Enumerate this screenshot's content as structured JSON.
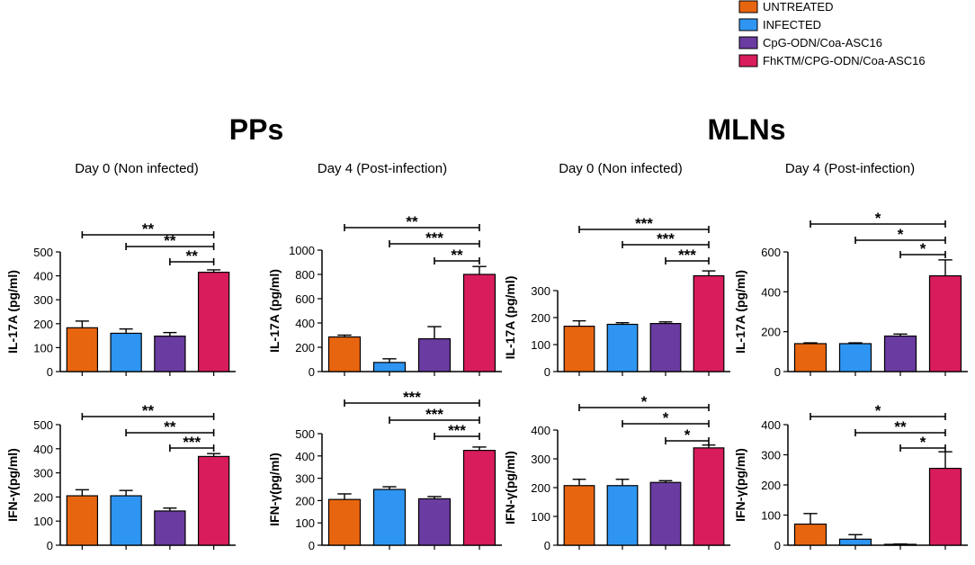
{
  "colors": {
    "UNTREATED": "#e8650f",
    "INFECTED": "#2f95f2",
    "CpG-ODN/Coa-ASC16": "#6a3ba0",
    "FhKTM/CPG-ODN/Coa-ASC16": "#d81c5c"
  },
  "legend": {
    "items": [
      {
        "label": "UNTREATED",
        "color": "#e8650f"
      },
      {
        "label": "INFECTED",
        "color": "#2f95f2"
      },
      {
        "label": "CpG-ODN/Coa-ASC16",
        "color": "#6a3ba0"
      },
      {
        "label": "FhKTM/CPG-ODN/Coa-ASC16",
        "color": "#d81c5c"
      }
    ]
  },
  "sections": [
    {
      "title": "PPs",
      "subtitles": [
        "Day 0 (Non infected)",
        "Day 4 (Post-infection)"
      ]
    },
    {
      "title": "MLNs",
      "subtitles": [
        "Day 0 (Non infected)",
        "Day 4 (Post-infection)"
      ]
    }
  ],
  "chart_data": [
    {
      "type": "bar",
      "tissue": "PPs",
      "day": "Day 0 (Non infected)",
      "ylabel": "IL-17A (pg/ml)",
      "categories": [
        "UNTREATED",
        "INFECTED",
        "CpG-ODN/Coa-ASC16",
        "FhKTM/CPG-ODN/Coa-ASC16"
      ],
      "values": [
        183,
        160,
        148,
        415
      ],
      "errors": [
        28,
        18,
        15,
        10
      ],
      "ylim": [
        0,
        500
      ],
      "yticks": [
        0,
        100,
        200,
        300,
        400,
        500
      ],
      "significance": [
        {
          "from": 0,
          "to": 3,
          "label": "**"
        },
        {
          "from": 1,
          "to": 3,
          "label": "**"
        },
        {
          "from": 2,
          "to": 3,
          "label": "**"
        }
      ]
    },
    {
      "type": "bar",
      "tissue": "PPs",
      "day": "Day 4 (Post-infection)",
      "ylabel": "IL-17A (pg/ml)",
      "categories": [
        "UNTREATED",
        "INFECTED",
        "CpG-ODN/Coa-ASC16",
        "FhKTM/CPG-ODN/Coa-ASC16"
      ],
      "values": [
        285,
        75,
        270,
        800
      ],
      "errors": [
        15,
        30,
        100,
        65
      ],
      "ylim": [
        0,
        1000
      ],
      "yticks": [
        0,
        200,
        400,
        600,
        800,
        1000
      ],
      "significance": [
        {
          "from": 0,
          "to": 3,
          "label": "**"
        },
        {
          "from": 1,
          "to": 3,
          "label": "***"
        },
        {
          "from": 2,
          "to": 3,
          "label": "**"
        }
      ]
    },
    {
      "type": "bar",
      "tissue": "MLNs",
      "day": "Day 0 (Non infected)",
      "ylabel": "IL-17A (pg/ml)",
      "categories": [
        "UNTREATED",
        "INFECTED",
        "CpG-ODN/Coa-ASC16",
        "FhKTM/CPG-ODN/Coa-ASC16"
      ],
      "values": [
        168,
        175,
        178,
        355
      ],
      "errors": [
        20,
        6,
        6,
        18
      ],
      "ylim": [
        0,
        400
      ],
      "yticks": [
        0,
        100,
        200,
        300
      ],
      "significance": [
        {
          "from": 0,
          "to": 3,
          "label": "***"
        },
        {
          "from": 1,
          "to": 3,
          "label": "***"
        },
        {
          "from": 2,
          "to": 3,
          "label": "***"
        }
      ]
    },
    {
      "type": "bar",
      "tissue": "MLNs",
      "day": "Day 4 (Post-infection)",
      "ylabel": "IL-17A (pg/ml)",
      "categories": [
        "UNTREATED",
        "INFECTED",
        "CpG-ODN/Coa-ASC16",
        "FhKTM/CPG-ODN/Coa-ASC16"
      ],
      "values": [
        140,
        140,
        178,
        480
      ],
      "errors": [
        4,
        4,
        10,
        80
      ],
      "ylim": [
        0,
        600
      ],
      "yticks": [
        0,
        200,
        400,
        600
      ],
      "significance": [
        {
          "from": 0,
          "to": 3,
          "label": "*"
        },
        {
          "from": 1,
          "to": 3,
          "label": "*"
        },
        {
          "from": 2,
          "to": 3,
          "label": "*"
        }
      ]
    },
    {
      "type": "bar",
      "tissue": "PPs",
      "day": "Day 0 (Non infected)",
      "ylabel": "IFN-γ(pg/ml)",
      "categories": [
        "UNTREATED",
        "INFECTED",
        "CpG-ODN/Coa-ASC16",
        "FhKTM/CPG-ODN/Coa-ASC16"
      ],
      "values": [
        205,
        205,
        142,
        368
      ],
      "errors": [
        25,
        22,
        12,
        12
      ],
      "ylim": [
        0,
        500
      ],
      "yticks": [
        0,
        100,
        200,
        300,
        400,
        500
      ],
      "significance": [
        {
          "from": 0,
          "to": 3,
          "label": "**"
        },
        {
          "from": 1,
          "to": 3,
          "label": "**"
        },
        {
          "from": 2,
          "to": 3,
          "label": "***"
        }
      ]
    },
    {
      "type": "bar",
      "tissue": "PPs",
      "day": "Day 4 (Post-infection)",
      "ylabel": "IFN-γ(pg/ml)",
      "categories": [
        "UNTREATED",
        "INFECTED",
        "CpG-ODN/Coa-ASC16",
        "FhKTM/CPG-ODN/Coa-ASC16"
      ],
      "values": [
        205,
        250,
        208,
        425
      ],
      "errors": [
        25,
        12,
        10,
        15
      ],
      "ylim": [
        0,
        500
      ],
      "yticks": [
        0,
        100,
        200,
        300,
        400,
        500
      ],
      "significance": [
        {
          "from": 0,
          "to": 3,
          "label": "***"
        },
        {
          "from": 1,
          "to": 3,
          "label": "***"
        },
        {
          "from": 2,
          "to": 3,
          "label": "***"
        }
      ]
    },
    {
      "type": "bar",
      "tissue": "MLNs",
      "day": "Day 0 (Non infected)",
      "ylabel": "IFN-γ(pg/ml)",
      "categories": [
        "UNTREATED",
        "INFECTED",
        "CpG-ODN/Coa-ASC16",
        "FhKTM/CPG-ODN/Coa-ASC16"
      ],
      "values": [
        207,
        207,
        218,
        338
      ],
      "errors": [
        22,
        22,
        6,
        10
      ],
      "ylim": [
        0,
        400
      ],
      "yticks": [
        0,
        100,
        200,
        300,
        400
      ],
      "significance": [
        {
          "from": 0,
          "to": 3,
          "label": "*"
        },
        {
          "from": 1,
          "to": 3,
          "label": "*"
        },
        {
          "from": 2,
          "to": 3,
          "label": "*"
        }
      ]
    },
    {
      "type": "bar",
      "tissue": "MLNs",
      "day": "Day 4 (Post-infection)",
      "ylabel": "IFN-γ(pg/ml)",
      "categories": [
        "UNTREATED",
        "INFECTED",
        "CpG-ODN/Coa-ASC16",
        "FhKTM/CPG-ODN/Coa-ASC16"
      ],
      "values": [
        70,
        20,
        2,
        255
      ],
      "errors": [
        35,
        15,
        2,
        55
      ],
      "ylim": [
        0,
        400
      ],
      "yticks": [
        0,
        100,
        200,
        300,
        400
      ],
      "significance": [
        {
          "from": 0,
          "to": 3,
          "label": "*"
        },
        {
          "from": 1,
          "to": 3,
          "label": "**"
        },
        {
          "from": 2,
          "to": 3,
          "label": "*"
        }
      ]
    }
  ]
}
